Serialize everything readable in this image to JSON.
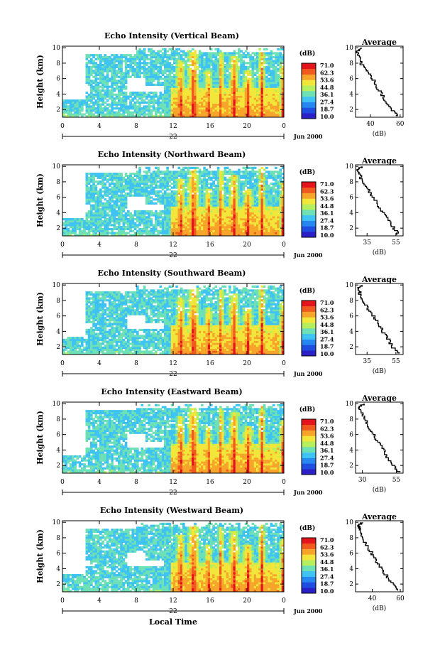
{
  "chart_data": {
    "type": "heatmap",
    "xlabel": "Local Time",
    "date_tick": "22",
    "date_label": "Jun 2000",
    "ylabel": "Height (km)",
    "x_ticks": [
      "0",
      "4",
      "8",
      "12",
      "16",
      "20",
      "0"
    ],
    "y_ticks": [
      "2",
      "4",
      "6",
      "8",
      "10"
    ],
    "xlim_hours": [
      0,
      24
    ],
    "ylim_km": [
      1.0,
      10.2
    ],
    "colorbar": {
      "unit": "(dB)",
      "ticks": [
        "71.0",
        "62.3",
        "53.6",
        "44.8",
        "36.1",
        "27.4",
        "18.7",
        "10.0"
      ],
      "colors": [
        "#2b20c8",
        "#1f4de0",
        "#2787f0",
        "#3fc3f2",
        "#6de0b6",
        "#b5ef5d",
        "#f2e63b",
        "#f6a52a",
        "#f05a1e",
        "#e3141b"
      ]
    },
    "average_title": "Average",
    "average_xlabel": "(dB)",
    "panels": [
      {
        "title": "Echo Intensity (Vertical Beam)",
        "avg_xticks": [
          "40",
          "60"
        ],
        "avg_xlim": [
          30,
          62
        ],
        "avg_profile": [
          [
            1.2,
            58
          ],
          [
            2,
            55
          ],
          [
            3,
            51
          ],
          [
            4,
            48
          ],
          [
            5,
            44
          ],
          [
            6,
            42
          ],
          [
            7,
            38
          ],
          [
            8,
            34
          ],
          [
            9,
            32
          ],
          [
            9.6,
            31
          ],
          [
            10,
            34
          ]
        ]
      },
      {
        "title": "Echo Intensity (Northward Beam)",
        "avg_xticks": [
          "35",
          "55"
        ],
        "avg_xlim": [
          27,
          60
        ],
        "avg_profile": [
          [
            1.2,
            57
          ],
          [
            2,
            54
          ],
          [
            3,
            50
          ],
          [
            4,
            47
          ],
          [
            5,
            43
          ],
          [
            6,
            40
          ],
          [
            7,
            36
          ],
          [
            8,
            32
          ],
          [
            9,
            30
          ],
          [
            9.6,
            29
          ],
          [
            10,
            31
          ]
        ]
      },
      {
        "title": "Echo Intensity (Southward Beam)",
        "avg_xticks": [
          "35",
          "55"
        ],
        "avg_xlim": [
          27,
          60
        ],
        "avg_profile": [
          [
            1.2,
            57
          ],
          [
            2,
            53
          ],
          [
            3,
            50
          ],
          [
            4,
            46
          ],
          [
            5,
            43
          ],
          [
            6,
            40
          ],
          [
            7,
            36
          ],
          [
            8,
            32
          ],
          [
            9,
            30
          ],
          [
            9.6,
            29
          ],
          [
            10,
            31
          ]
        ]
      },
      {
        "title": "Echo Intensity (Eastward Beam)",
        "avg_xticks": [
          "30",
          "55"
        ],
        "avg_xlim": [
          25,
          60
        ],
        "avg_profile": [
          [
            1.2,
            57
          ],
          [
            2,
            53
          ],
          [
            3,
            49
          ],
          [
            4,
            46
          ],
          [
            5,
            42
          ],
          [
            6,
            39
          ],
          [
            7,
            35
          ],
          [
            8,
            32
          ],
          [
            9,
            29
          ],
          [
            9.6,
            28
          ],
          [
            10,
            31
          ]
        ]
      },
      {
        "title": "Echo Intensity (Westward Beam)",
        "avg_xticks": [
          "40",
          "60"
        ],
        "avg_xlim": [
          28,
          62
        ],
        "avg_profile": [
          [
            1.2,
            59
          ],
          [
            2,
            55
          ],
          [
            3,
            51
          ],
          [
            4,
            47
          ],
          [
            5,
            43
          ],
          [
            6,
            40
          ],
          [
            7,
            36
          ],
          [
            8,
            33
          ],
          [
            9,
            31
          ],
          [
            9.6,
            30
          ],
          [
            10,
            33
          ]
        ]
      }
    ]
  }
}
